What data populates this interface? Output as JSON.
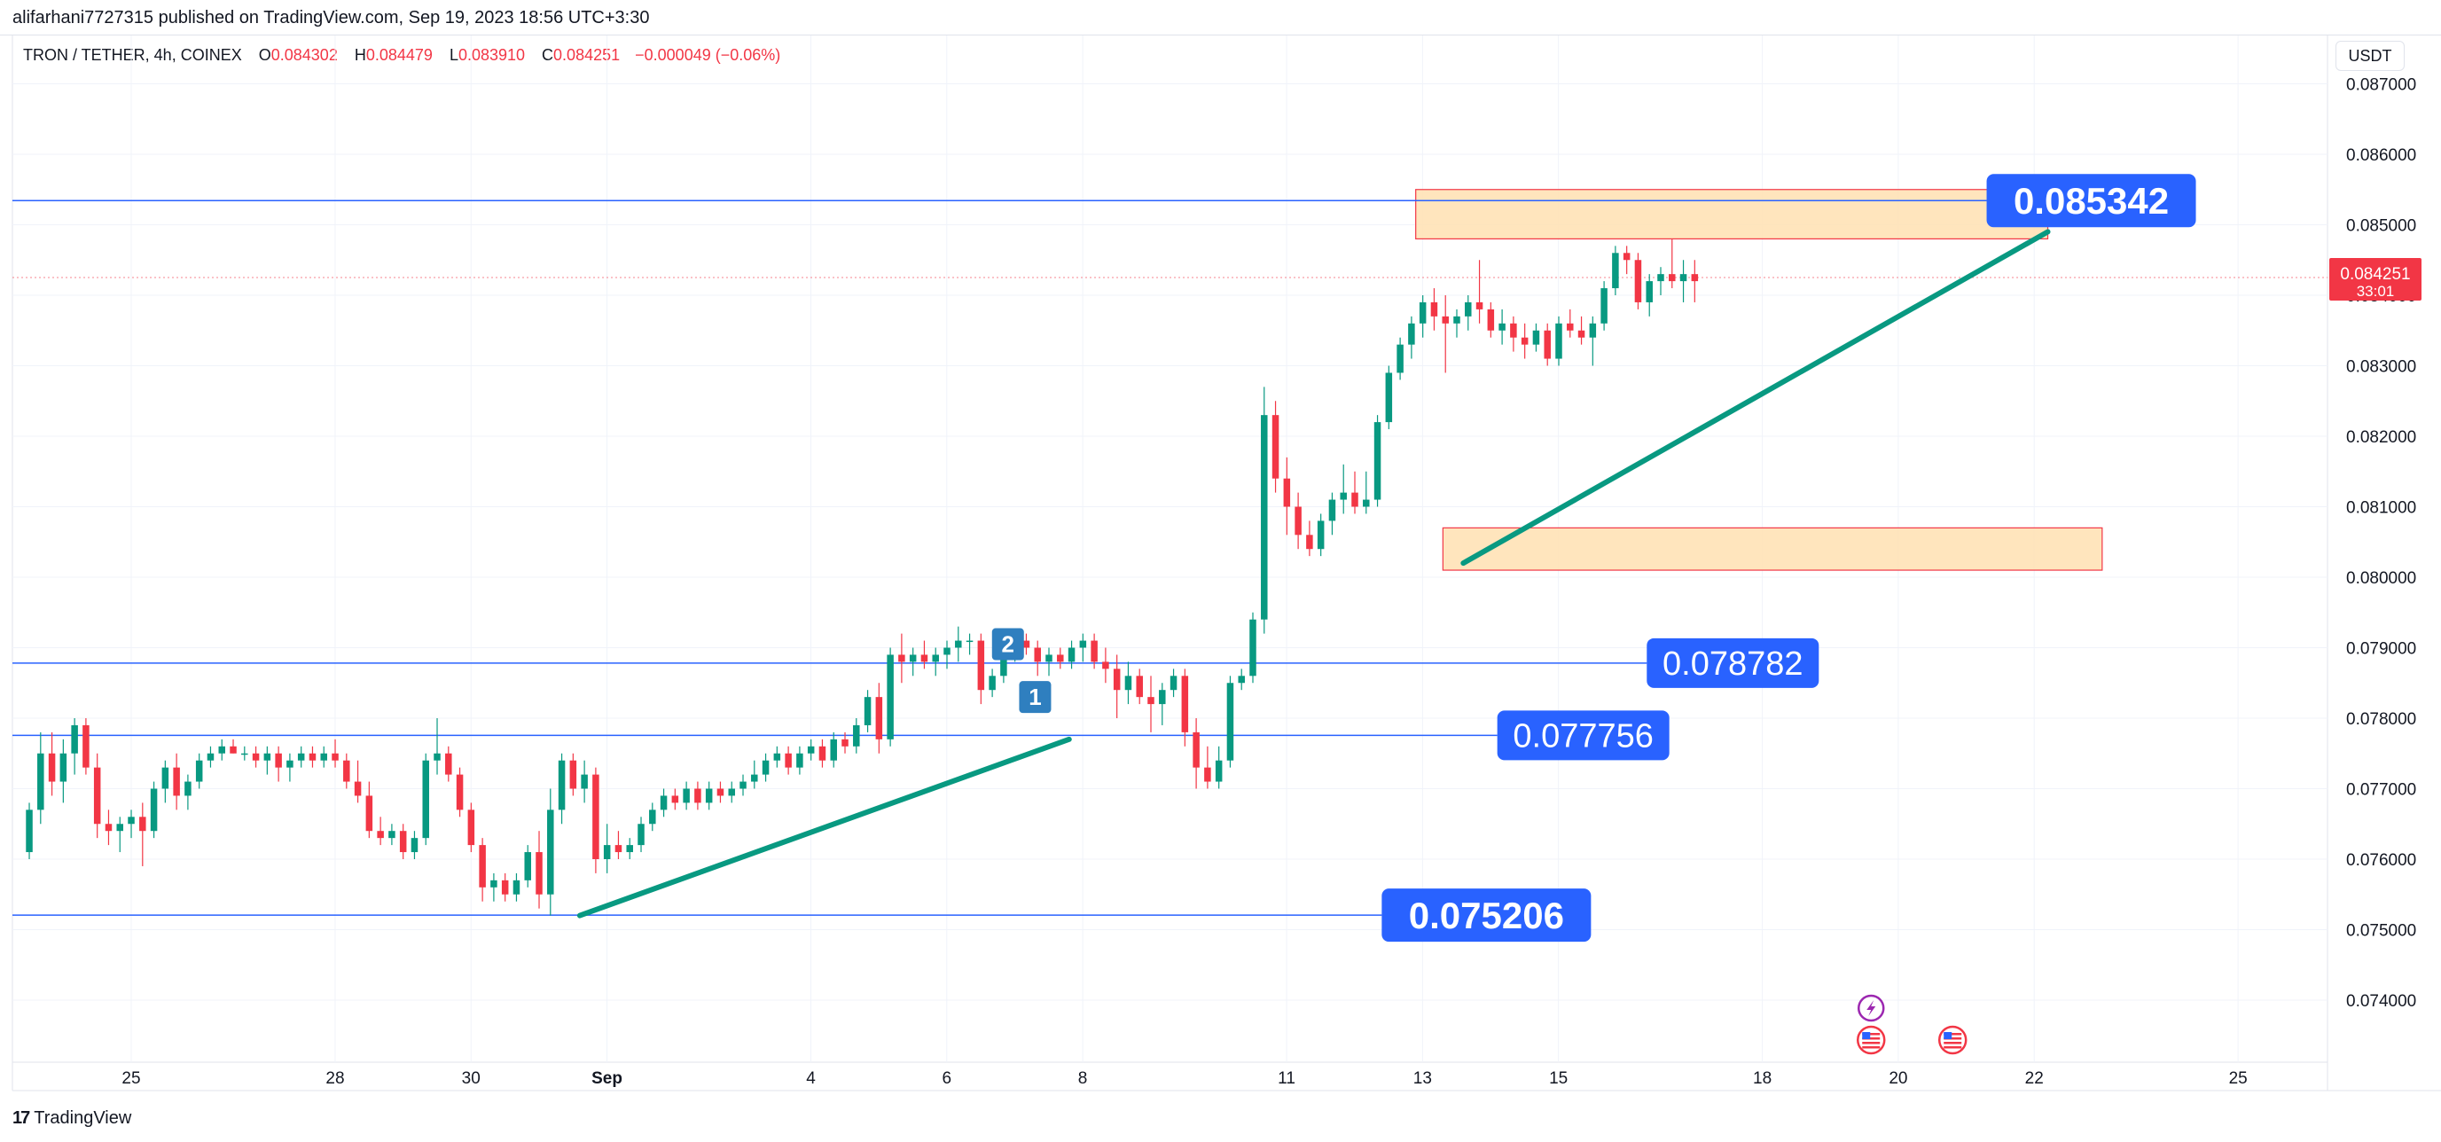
{
  "header": {
    "published": "alifarhani7727315 published on TradingView.com, Sep 19, 2023 18:56 UTC+3:30"
  },
  "legend": {
    "symbol": "TRON / TETHER, 4h, COINEX",
    "o_label": "O",
    "o_value": "0.084302",
    "h_label": "H",
    "h_value": "0.084479",
    "l_label": "L",
    "l_value": "0.083910",
    "c_label": "C",
    "c_value": "0.084251",
    "change": "−0.000049 (−0.06%)"
  },
  "currency": "USDT",
  "footer": {
    "logo": "17",
    "brand": "TradingView"
  },
  "colors": {
    "up": "#089981",
    "down": "#f23645",
    "level_line": "#2962ff",
    "label_bg": "#2962ff",
    "trend": "#089981",
    "zone_fill": "#ffe0b2",
    "zone_border": "#f23645",
    "price_tag": "#f23645"
  },
  "chart_data": {
    "type": "candlestick",
    "timeframe": "4h",
    "y_ticks": [
      "0.087000",
      "0.086000",
      "0.085000",
      "0.084000",
      "0.083000",
      "0.082000",
      "0.081000",
      "0.080000",
      "0.079000",
      "0.078000",
      "0.077000",
      "0.076000",
      "0.075000",
      "0.074000"
    ],
    "x_ticks": [
      {
        "label": "25",
        "day": 25
      },
      {
        "label": "28",
        "day": 28
      },
      {
        "label": "30",
        "day": 30
      },
      {
        "label": "Sep",
        "day": 32,
        "bold": true
      },
      {
        "label": "4",
        "day": 35
      },
      {
        "label": "6",
        "day": 37
      },
      {
        "label": "8",
        "day": 39
      },
      {
        "label": "11",
        "day": 42
      },
      {
        "label": "13",
        "day": 44
      },
      {
        "label": "15",
        "day": 46
      },
      {
        "label": "18",
        "day": 49
      },
      {
        "label": "20",
        "day": 51
      },
      {
        "label": "22",
        "day": 53
      },
      {
        "label": "25",
        "day": 56
      }
    ],
    "last_price": "0.084251",
    "countdown": "33:01",
    "levels": [
      {
        "price": 0.085342,
        "label": "0.085342",
        "from_day": 23.2,
        "to_day": 52.3
      },
      {
        "price": 0.078782,
        "label": "0.078782",
        "from_day": 23.2,
        "to_day": 47.3
      },
      {
        "price": 0.077756,
        "label": "0.077756",
        "from_day": 23.2,
        "to_day": 45.1
      },
      {
        "price": 0.075206,
        "label": "0.075206",
        "from_day": 23.2,
        "to_day": 43.4
      }
    ],
    "zones": [
      {
        "from_day": 43.9,
        "to_day": 53.2,
        "top": 0.0855,
        "bottom": 0.0848
      },
      {
        "from_day": 44.3,
        "to_day": 54.0,
        "top": 0.0807,
        "bottom": 0.0801
      }
    ],
    "trendlines": [
      {
        "x1": 31.6,
        "y1": 0.0752,
        "x2": 38.8,
        "y2": 0.0777
      },
      {
        "x1": 44.6,
        "y1": 0.0802,
        "x2": 53.2,
        "y2": 0.0849
      }
    ],
    "markers": [
      {
        "label": "2",
        "day": 37.9,
        "price": 0.07905
      },
      {
        "label": "1",
        "day": 38.3,
        "price": 0.0783
      }
    ],
    "event_icons": [
      {
        "kind": "lightning",
        "day": 50.6,
        "y": 1137
      },
      {
        "kind": "flag",
        "day": 50.6,
        "y": 1173
      },
      {
        "kind": "flag",
        "day": 51.8,
        "y": 1173
      }
    ],
    "candles": [
      [
        0.0761,
        0.0768,
        0.076,
        0.0767
      ],
      [
        0.0767,
        0.0778,
        0.0765,
        0.0775
      ],
      [
        0.0775,
        0.0778,
        0.0769,
        0.0771
      ],
      [
        0.0771,
        0.0777,
        0.0768,
        0.0775
      ],
      [
        0.0775,
        0.078,
        0.0772,
        0.0779
      ],
      [
        0.0779,
        0.078,
        0.0772,
        0.0773
      ],
      [
        0.0773,
        0.0775,
        0.0763,
        0.0765
      ],
      [
        0.0765,
        0.0767,
        0.0762,
        0.0764
      ],
      [
        0.0764,
        0.0766,
        0.0761,
        0.0765
      ],
      [
        0.0765,
        0.0767,
        0.0763,
        0.0766
      ],
      [
        0.0766,
        0.0768,
        0.0759,
        0.0764
      ],
      [
        0.0764,
        0.0771,
        0.0763,
        0.077
      ],
      [
        0.077,
        0.0774,
        0.0768,
        0.0773
      ],
      [
        0.0773,
        0.0775,
        0.0767,
        0.0769
      ],
      [
        0.0769,
        0.0772,
        0.0767,
        0.0771
      ],
      [
        0.0771,
        0.0775,
        0.077,
        0.0774
      ],
      [
        0.0774,
        0.0776,
        0.0773,
        0.0775
      ],
      [
        0.0775,
        0.0777,
        0.0774,
        0.0776
      ],
      [
        0.0776,
        0.0777,
        0.0775,
        0.0775
      ],
      [
        0.0775,
        0.0776,
        0.0774,
        0.0775
      ],
      [
        0.0775,
        0.0776,
        0.0773,
        0.0774
      ],
      [
        0.0774,
        0.0776,
        0.0772,
        0.0775
      ],
      [
        0.0775,
        0.0776,
        0.0771,
        0.0773
      ],
      [
        0.0773,
        0.0775,
        0.0771,
        0.0774
      ],
      [
        0.0774,
        0.0776,
        0.0773,
        0.0775
      ],
      [
        0.0775,
        0.0776,
        0.0773,
        0.0774
      ],
      [
        0.0774,
        0.0776,
        0.0773,
        0.0775
      ],
      [
        0.0775,
        0.0777,
        0.0773,
        0.0774
      ],
      [
        0.0774,
        0.0775,
        0.077,
        0.0771
      ],
      [
        0.0771,
        0.0774,
        0.0768,
        0.0769
      ],
      [
        0.0769,
        0.0771,
        0.0763,
        0.0764
      ],
      [
        0.0764,
        0.0766,
        0.0762,
        0.0763
      ],
      [
        0.0763,
        0.0765,
        0.0762,
        0.0764
      ],
      [
        0.0764,
        0.0765,
        0.076,
        0.0761
      ],
      [
        0.0761,
        0.0764,
        0.076,
        0.0763
      ],
      [
        0.0763,
        0.0775,
        0.0762,
        0.0774
      ],
      [
        0.0774,
        0.078,
        0.0772,
        0.0775
      ],
      [
        0.0775,
        0.0776,
        0.0771,
        0.0772
      ],
      [
        0.0772,
        0.0773,
        0.0766,
        0.0767
      ],
      [
        0.0767,
        0.0768,
        0.0761,
        0.0762
      ],
      [
        0.0762,
        0.0763,
        0.0754,
        0.0756
      ],
      [
        0.0756,
        0.0758,
        0.0754,
        0.0757
      ],
      [
        0.0757,
        0.0758,
        0.0754,
        0.0755
      ],
      [
        0.0755,
        0.0758,
        0.0754,
        0.0757
      ],
      [
        0.0757,
        0.0762,
        0.0756,
        0.0761
      ],
      [
        0.0761,
        0.0764,
        0.0753,
        0.0755
      ],
      [
        0.0755,
        0.077,
        0.0752,
        0.0767
      ],
      [
        0.0767,
        0.0775,
        0.0765,
        0.0774
      ],
      [
        0.0774,
        0.0775,
        0.0769,
        0.077
      ],
      [
        0.077,
        0.0774,
        0.0768,
        0.0772
      ],
      [
        0.0772,
        0.0773,
        0.0758,
        0.076
      ],
      [
        0.076,
        0.0765,
        0.0758,
        0.0762
      ],
      [
        0.0762,
        0.0764,
        0.076,
        0.0761
      ],
      [
        0.0761,
        0.0763,
        0.076,
        0.0762
      ],
      [
        0.0762,
        0.0766,
        0.0761,
        0.0765
      ],
      [
        0.0765,
        0.0768,
        0.0764,
        0.0767
      ],
      [
        0.0767,
        0.077,
        0.0766,
        0.0769
      ],
      [
        0.0769,
        0.077,
        0.0767,
        0.0768
      ],
      [
        0.0768,
        0.0771,
        0.0767,
        0.077
      ],
      [
        0.077,
        0.0771,
        0.0767,
        0.0768
      ],
      [
        0.0768,
        0.0771,
        0.0767,
        0.077
      ],
      [
        0.077,
        0.0771,
        0.0768,
        0.0769
      ],
      [
        0.0769,
        0.0771,
        0.0768,
        0.077
      ],
      [
        0.077,
        0.0772,
        0.0769,
        0.0771
      ],
      [
        0.0771,
        0.0774,
        0.077,
        0.0772
      ],
      [
        0.0772,
        0.0775,
        0.0771,
        0.0774
      ],
      [
        0.0774,
        0.0776,
        0.0773,
        0.0775
      ],
      [
        0.0775,
        0.0776,
        0.0772,
        0.0773
      ],
      [
        0.0773,
        0.0776,
        0.0772,
        0.0775
      ],
      [
        0.0775,
        0.0777,
        0.0774,
        0.0776
      ],
      [
        0.0776,
        0.0777,
        0.0773,
        0.0774
      ],
      [
        0.0774,
        0.0778,
        0.0773,
        0.0777
      ],
      [
        0.0777,
        0.0778,
        0.0775,
        0.0776
      ],
      [
        0.0776,
        0.078,
        0.0775,
        0.0779
      ],
      [
        0.0779,
        0.0784,
        0.0778,
        0.0783
      ],
      [
        0.0783,
        0.0785,
        0.0775,
        0.0777
      ],
      [
        0.0777,
        0.079,
        0.0776,
        0.0789
      ],
      [
        0.0789,
        0.0792,
        0.0785,
        0.0788
      ],
      [
        0.0788,
        0.079,
        0.0786,
        0.0789
      ],
      [
        0.0789,
        0.0791,
        0.0787,
        0.0788
      ],
      [
        0.0788,
        0.079,
        0.0786,
        0.0789
      ],
      [
        0.0789,
        0.0791,
        0.0787,
        0.079
      ],
      [
        0.079,
        0.0793,
        0.0788,
        0.0791
      ],
      [
        0.0791,
        0.0792,
        0.0789,
        0.0791
      ],
      [
        0.0791,
        0.0792,
        0.0782,
        0.0784
      ],
      [
        0.0784,
        0.0787,
        0.0783,
        0.0786
      ],
      [
        0.0786,
        0.0791,
        0.0785,
        0.079
      ],
      [
        0.079,
        0.0792,
        0.0788,
        0.0791
      ],
      [
        0.0791,
        0.0792,
        0.0789,
        0.079
      ],
      [
        0.079,
        0.0791,
        0.0786,
        0.0788
      ],
      [
        0.0788,
        0.079,
        0.0786,
        0.0789
      ],
      [
        0.0789,
        0.079,
        0.0787,
        0.0788
      ],
      [
        0.0788,
        0.0791,
        0.0787,
        0.079
      ],
      [
        0.079,
        0.0792,
        0.0788,
        0.0791
      ],
      [
        0.0791,
        0.0792,
        0.0787,
        0.0788
      ],
      [
        0.0788,
        0.079,
        0.0785,
        0.0787
      ],
      [
        0.0787,
        0.0789,
        0.078,
        0.0784
      ],
      [
        0.0784,
        0.0788,
        0.0782,
        0.0786
      ],
      [
        0.0786,
        0.0787,
        0.0782,
        0.0783
      ],
      [
        0.0783,
        0.0786,
        0.0778,
        0.0782
      ],
      [
        0.0782,
        0.0785,
        0.0779,
        0.0784
      ],
      [
        0.0784,
        0.0787,
        0.0783,
        0.0786
      ],
      [
        0.0786,
        0.0787,
        0.0776,
        0.0778
      ],
      [
        0.0778,
        0.078,
        0.077,
        0.0773
      ],
      [
        0.0773,
        0.0776,
        0.077,
        0.0771
      ],
      [
        0.0771,
        0.0776,
        0.077,
        0.0774
      ],
      [
        0.0774,
        0.0786,
        0.0773,
        0.0785
      ],
      [
        0.0785,
        0.0787,
        0.0784,
        0.0786
      ],
      [
        0.0786,
        0.0795,
        0.0785,
        0.0794
      ],
      [
        0.0794,
        0.0827,
        0.0792,
        0.0823
      ],
      [
        0.0823,
        0.0825,
        0.0812,
        0.0814
      ],
      [
        0.0814,
        0.0817,
        0.0806,
        0.081
      ],
      [
        0.081,
        0.0812,
        0.0804,
        0.0806
      ],
      [
        0.0806,
        0.0808,
        0.0803,
        0.0804
      ],
      [
        0.0804,
        0.0809,
        0.0803,
        0.0808
      ],
      [
        0.0808,
        0.0812,
        0.0806,
        0.0811
      ],
      [
        0.0811,
        0.0816,
        0.0809,
        0.0812
      ],
      [
        0.0812,
        0.0815,
        0.0809,
        0.081
      ],
      [
        0.081,
        0.0815,
        0.0809,
        0.0811
      ],
      [
        0.0811,
        0.0823,
        0.081,
        0.0822
      ],
      [
        0.0822,
        0.083,
        0.0821,
        0.0829
      ],
      [
        0.0829,
        0.0834,
        0.0828,
        0.0833
      ],
      [
        0.0833,
        0.0837,
        0.0831,
        0.0836
      ],
      [
        0.0836,
        0.084,
        0.0834,
        0.0839
      ],
      [
        0.0839,
        0.0841,
        0.0835,
        0.0837
      ],
      [
        0.0837,
        0.084,
        0.0829,
        0.0836
      ],
      [
        0.0836,
        0.0838,
        0.0834,
        0.0837
      ],
      [
        0.0837,
        0.084,
        0.0835,
        0.0839
      ],
      [
        0.0839,
        0.0845,
        0.0836,
        0.0838
      ],
      [
        0.0838,
        0.0839,
        0.0834,
        0.0835
      ],
      [
        0.0835,
        0.0838,
        0.0833,
        0.0836
      ],
      [
        0.0836,
        0.0837,
        0.0832,
        0.0834
      ],
      [
        0.0834,
        0.0836,
        0.0831,
        0.0833
      ],
      [
        0.0833,
        0.0836,
        0.0832,
        0.0835
      ],
      [
        0.0835,
        0.0836,
        0.083,
        0.0831
      ],
      [
        0.0831,
        0.0837,
        0.083,
        0.0836
      ],
      [
        0.0836,
        0.0838,
        0.0834,
        0.0835
      ],
      [
        0.0835,
        0.0837,
        0.0833,
        0.0834
      ],
      [
        0.0834,
        0.0837,
        0.083,
        0.0836
      ],
      [
        0.0836,
        0.0842,
        0.0835,
        0.0841
      ],
      [
        0.0841,
        0.0847,
        0.084,
        0.0846
      ],
      [
        0.0846,
        0.0847,
        0.0843,
        0.0845
      ],
      [
        0.0845,
        0.0846,
        0.0838,
        0.0839
      ],
      [
        0.0839,
        0.0843,
        0.0837,
        0.0842
      ],
      [
        0.0842,
        0.0844,
        0.084,
        0.0843
      ],
      [
        0.0843,
        0.0848,
        0.0841,
        0.0842
      ],
      [
        0.0842,
        0.0845,
        0.0839,
        0.0843
      ],
      [
        0.0843,
        0.0845,
        0.0839,
        0.0842
      ]
    ],
    "candle_start_day": 23.5,
    "candle_step_day": 0.1667
  }
}
